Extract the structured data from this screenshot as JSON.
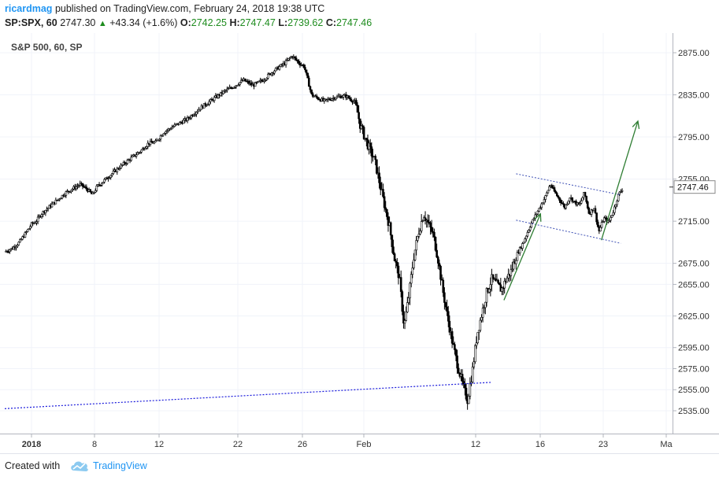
{
  "header": {
    "author": "ricardmag",
    "published_text": "published on TradingView.com, February 24, 2018 19:38 UTC",
    "symbol": "SP:SPX, 60",
    "last": "2747.30",
    "change": "+43.34 (+1.6%)",
    "o_label": "O:",
    "o_value": "2742.25",
    "h_label": "H:",
    "h_value": "2747.47",
    "l_label": "L:",
    "l_value": "2739.62",
    "c_label": "C:",
    "c_value": "2747.46"
  },
  "footer": {
    "created_with": "Created with",
    "brand": "TradingView"
  },
  "colors": {
    "author": "#2196f3",
    "up_triangle": "#1e8c1e",
    "value_green": "#1e8c1e",
    "arrow_green": "#2e7d32",
    "channel_blue": "#3f51b5",
    "support_blue": "#1a1adb",
    "candle": "#000000"
  },
  "chart_data": {
    "type": "candlestick",
    "title": "S&P 500, 60, SP",
    "ylim": [
      2520,
      2895
    ],
    "y_ticks": [
      2535,
      2555,
      2575,
      2595,
      2625,
      2655,
      2675,
      2715,
      2755,
      2795,
      2835,
      2875
    ],
    "y_tick_labels": [
      "2535.00",
      "2555.00",
      "2575.00",
      "2595.00",
      "2625.00",
      "2655.00",
      "2675.00",
      "2715.00",
      "2755.00",
      "2795.00",
      "2835.00",
      "2875.00"
    ],
    "last_price_label": "2747.46",
    "last_price": 2747.46,
    "x_tick_labels": [
      "2018",
      "8",
      "12",
      "22",
      "26",
      "Feb",
      "12",
      "16",
      "23",
      "Ma"
    ],
    "path_points": [
      [
        0,
        2686
      ],
      [
        6,
        2689
      ],
      [
        12,
        2695
      ],
      [
        18,
        2705
      ],
      [
        22,
        2712
      ],
      [
        26,
        2715
      ],
      [
        30,
        2722
      ],
      [
        36,
        2728
      ],
      [
        42,
        2734
      ],
      [
        50,
        2742
      ],
      [
        56,
        2746
      ],
      [
        62,
        2750
      ],
      [
        68,
        2745
      ],
      [
        72,
        2740
      ],
      [
        76,
        2748
      ],
      [
        84,
        2756
      ],
      [
        94,
        2766
      ],
      [
        104,
        2775
      ],
      [
        112,
        2782
      ],
      [
        118,
        2789
      ],
      [
        124,
        2790
      ],
      [
        130,
        2799
      ],
      [
        140,
        2806
      ],
      [
        150,
        2812
      ],
      [
        160,
        2822
      ],
      [
        170,
        2830
      ],
      [
        180,
        2838
      ],
      [
        188,
        2843
      ],
      [
        196,
        2849
      ],
      [
        204,
        2844
      ],
      [
        212,
        2849
      ],
      [
        220,
        2857
      ],
      [
        230,
        2865
      ],
      [
        236,
        2872
      ],
      [
        242,
        2865
      ],
      [
        246,
        2862
      ],
      [
        252,
        2835
      ],
      [
        262,
        2829
      ],
      [
        272,
        2833
      ],
      [
        280,
        2834
      ],
      [
        285,
        2830
      ],
      [
        288,
        2828
      ],
      [
        292,
        2806
      ],
      [
        298,
        2788
      ],
      [
        304,
        2772
      ],
      [
        310,
        2740
      ],
      [
        316,
        2710
      ],
      [
        320,
        2680
      ],
      [
        324,
        2662
      ],
      [
        328,
        2615
      ],
      [
        332,
        2645
      ],
      [
        336,
        2682
      ],
      [
        340,
        2705
      ],
      [
        344,
        2722
      ],
      [
        348,
        2712
      ],
      [
        352,
        2702
      ],
      [
        356,
        2678
      ],
      [
        360,
        2648
      ],
      [
        364,
        2622
      ],
      [
        368,
        2598
      ],
      [
        372,
        2578
      ],
      [
        376,
        2560
      ],
      [
        380,
        2545
      ],
      [
        384,
        2572
      ],
      [
        388,
        2608
      ],
      [
        392,
        2628
      ],
      [
        396,
        2648
      ],
      [
        400,
        2660
      ],
      [
        404,
        2655
      ],
      [
        408,
        2650
      ],
      [
        412,
        2660
      ],
      [
        416,
        2668
      ],
      [
        420,
        2682
      ],
      [
        426,
        2695
      ],
      [
        432,
        2712
      ],
      [
        438,
        2725
      ],
      [
        444,
        2738
      ],
      [
        448,
        2750
      ],
      [
        452,
        2742
      ],
      [
        456,
        2735
      ],
      [
        460,
        2728
      ],
      [
        464,
        2738
      ],
      [
        468,
        2733
      ],
      [
        472,
        2730
      ],
      [
        476,
        2742
      ],
      [
        480,
        2722
      ],
      [
        484,
        2728
      ],
      [
        488,
        2705
      ],
      [
        492,
        2718
      ],
      [
        496,
        2714
      ],
      [
        500,
        2725
      ],
      [
        504,
        2740
      ],
      [
        508,
        2747
      ]
    ],
    "x_domain": [
      0,
      520
    ],
    "annotations": {
      "support_line": [
        [
          0,
          2537
        ],
        [
          400,
          2562
        ]
      ],
      "channel_upper": [
        [
          420,
          2760
        ],
        [
          506,
          2740
        ]
      ],
      "channel_lower": [
        [
          420,
          2716
        ],
        [
          506,
          2694
        ]
      ],
      "arrow_up_left": [
        [
          410,
          2640
        ],
        [
          440,
          2722
        ]
      ],
      "arrow_up_right": [
        [
          490,
          2697
        ],
        [
          520,
          2810
        ]
      ]
    }
  }
}
